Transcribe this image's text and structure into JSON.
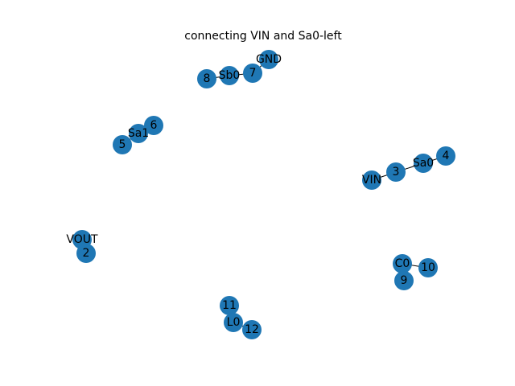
{
  "title": "connecting VIN and Sa0-left",
  "colors": {
    "node": "#1f77b4",
    "edge": "#000000",
    "background": "#ffffff"
  },
  "nodes": [
    "GND",
    "7",
    "Sb0",
    "8",
    "6",
    "Sa1",
    "5",
    "4",
    "Sa0",
    "3",
    "VIN",
    "VOUT",
    "2",
    "C0",
    "10",
    "9",
    "11",
    "L0",
    "12"
  ],
  "edges": [
    [
      "GND",
      "7"
    ],
    [
      "7",
      "Sb0"
    ],
    [
      "Sb0",
      "8"
    ],
    [
      "6",
      "Sa1"
    ],
    [
      "Sa1",
      "5"
    ],
    [
      "4",
      "Sa0"
    ],
    [
      "Sa0",
      "3"
    ],
    [
      "3",
      "VIN"
    ],
    [
      "VOUT",
      "2"
    ],
    [
      "C0",
      "10"
    ],
    [
      "C0",
      "9"
    ],
    [
      "11",
      "L0"
    ],
    [
      "L0",
      "12"
    ]
  ]
}
